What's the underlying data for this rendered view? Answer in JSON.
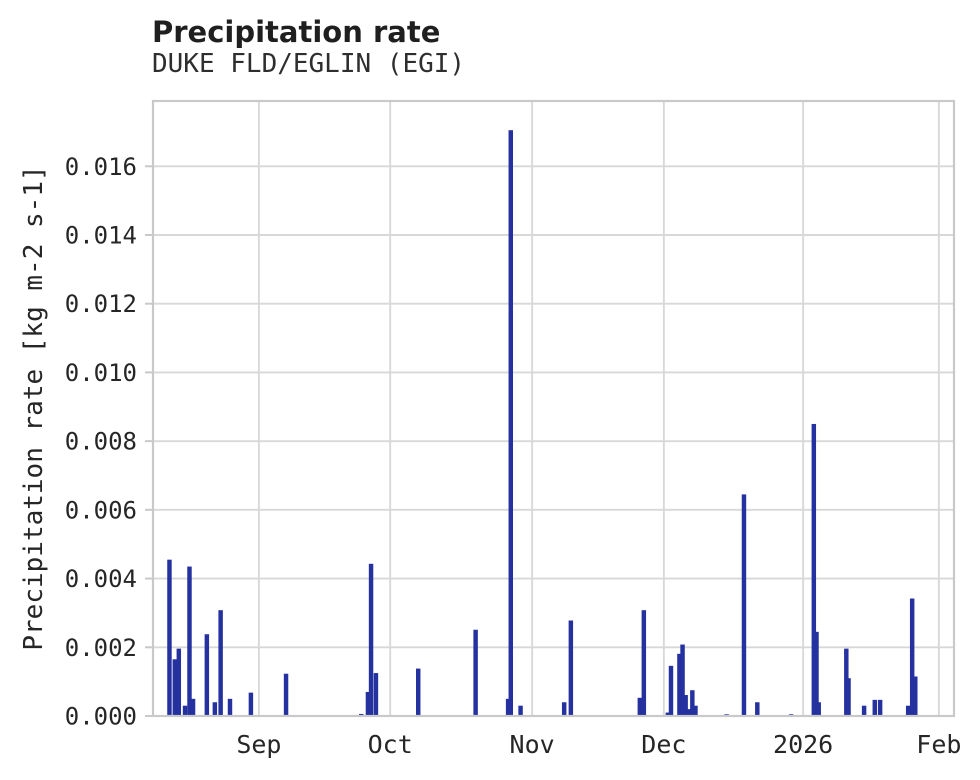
{
  "figure": {
    "title": "Precipitation rate",
    "subtitle": "DUKE FLD/EGLIN (EGI)"
  },
  "colors": {
    "bar": "#24319e",
    "grid": "#d8d8d8",
    "spine": "#c9c9c9",
    "text": "#262626",
    "background": "#ffffff"
  },
  "chart_data": {
    "type": "bar",
    "title": "Precipitation rate",
    "subtitle": "DUKE FLD/EGLIN (EGI)",
    "xlabel": "",
    "ylabel": "Precipitation rate [kg m-2 s-1]",
    "ylim": [
      0,
      0.0179
    ],
    "grid": true,
    "legend": "none",
    "bar_color": "#24319e",
    "yticks": [
      {
        "v": 0.0,
        "label": "0.000"
      },
      {
        "v": 0.002,
        "label": "0.002"
      },
      {
        "v": 0.004,
        "label": "0.004"
      },
      {
        "v": 0.006,
        "label": "0.006"
      },
      {
        "v": 0.008,
        "label": "0.008"
      },
      {
        "v": 0.01,
        "label": "0.010"
      },
      {
        "v": 0.012,
        "label": "0.012"
      },
      {
        "v": 0.014,
        "label": "0.014"
      },
      {
        "v": 0.016,
        "label": "0.016"
      }
    ],
    "x_axis_span_days": 180,
    "xticks": [
      {
        "t": 23.8,
        "label": "Sep"
      },
      {
        "t": 53.3,
        "label": "Oct"
      },
      {
        "t": 85.2,
        "label": "Nov"
      },
      {
        "t": 114.8,
        "label": "Dec"
      },
      {
        "t": 146.1,
        "label": "2026"
      },
      {
        "t": 176.6,
        "label": "Feb"
      }
    ],
    "points": [
      {
        "t": 3.7,
        "v": 0.00455
      },
      {
        "t": 4.9,
        "v": 0.00165
      },
      {
        "t": 5.8,
        "v": 0.00196
      },
      {
        "t": 7.2,
        "v": 0.0003
      },
      {
        "t": 8.2,
        "v": 0.00435
      },
      {
        "t": 9.0,
        "v": 0.0005
      },
      {
        "t": 12.1,
        "v": 0.00238
      },
      {
        "t": 13.9,
        "v": 0.0004
      },
      {
        "t": 15.2,
        "v": 0.00308
      },
      {
        "t": 17.3,
        "v": 0.0005
      },
      {
        "t": 22.0,
        "v": 0.00068
      },
      {
        "t": 29.9,
        "v": 0.00123
      },
      {
        "t": 46.8,
        "v": 6e-05
      },
      {
        "t": 48.3,
        "v": 0.0007
      },
      {
        "t": 49.0,
        "v": 0.00443
      },
      {
        "t": 50.1,
        "v": 0.00125
      },
      {
        "t": 59.6,
        "v": 0.00138
      },
      {
        "t": 72.5,
        "v": 0.00251
      },
      {
        "t": 79.8,
        "v": 0.0005
      },
      {
        "t": 80.4,
        "v": 0.01705
      },
      {
        "t": 82.6,
        "v": 0.0003
      },
      {
        "t": 92.4,
        "v": 0.0004
      },
      {
        "t": 93.9,
        "v": 0.00278
      },
      {
        "t": 109.4,
        "v": 0.00053
      },
      {
        "t": 110.3,
        "v": 0.00308
      },
      {
        "t": 115.7,
        "v": 0.0001
      },
      {
        "t": 116.4,
        "v": 0.00146
      },
      {
        "t": 118.3,
        "v": 0.00181
      },
      {
        "t": 119.0,
        "v": 0.00208
      },
      {
        "t": 119.7,
        "v": 0.00061
      },
      {
        "t": 120.3,
        "v": 0.0002
      },
      {
        "t": 121.2,
        "v": 0.00075
      },
      {
        "t": 121.9,
        "v": 0.0003
      },
      {
        "t": 128.9,
        "v": 5e-05
      },
      {
        "t": 132.8,
        "v": 0.00645
      },
      {
        "t": 135.8,
        "v": 0.0004
      },
      {
        "t": 143.4,
        "v": 5e-05
      },
      {
        "t": 148.5,
        "v": 0.0085
      },
      {
        "t": 149.1,
        "v": 0.00245
      },
      {
        "t": 149.6,
        "v": 0.0004
      },
      {
        "t": 155.8,
        "v": 0.00196
      },
      {
        "t": 156.3,
        "v": 0.0011
      },
      {
        "t": 159.8,
        "v": 0.0003
      },
      {
        "t": 162.2,
        "v": 0.00047
      },
      {
        "t": 163.4,
        "v": 0.00047
      },
      {
        "t": 169.7,
        "v": 0.0003
      },
      {
        "t": 170.6,
        "v": 0.00342
      },
      {
        "t": 171.3,
        "v": 0.00115
      }
    ]
  }
}
